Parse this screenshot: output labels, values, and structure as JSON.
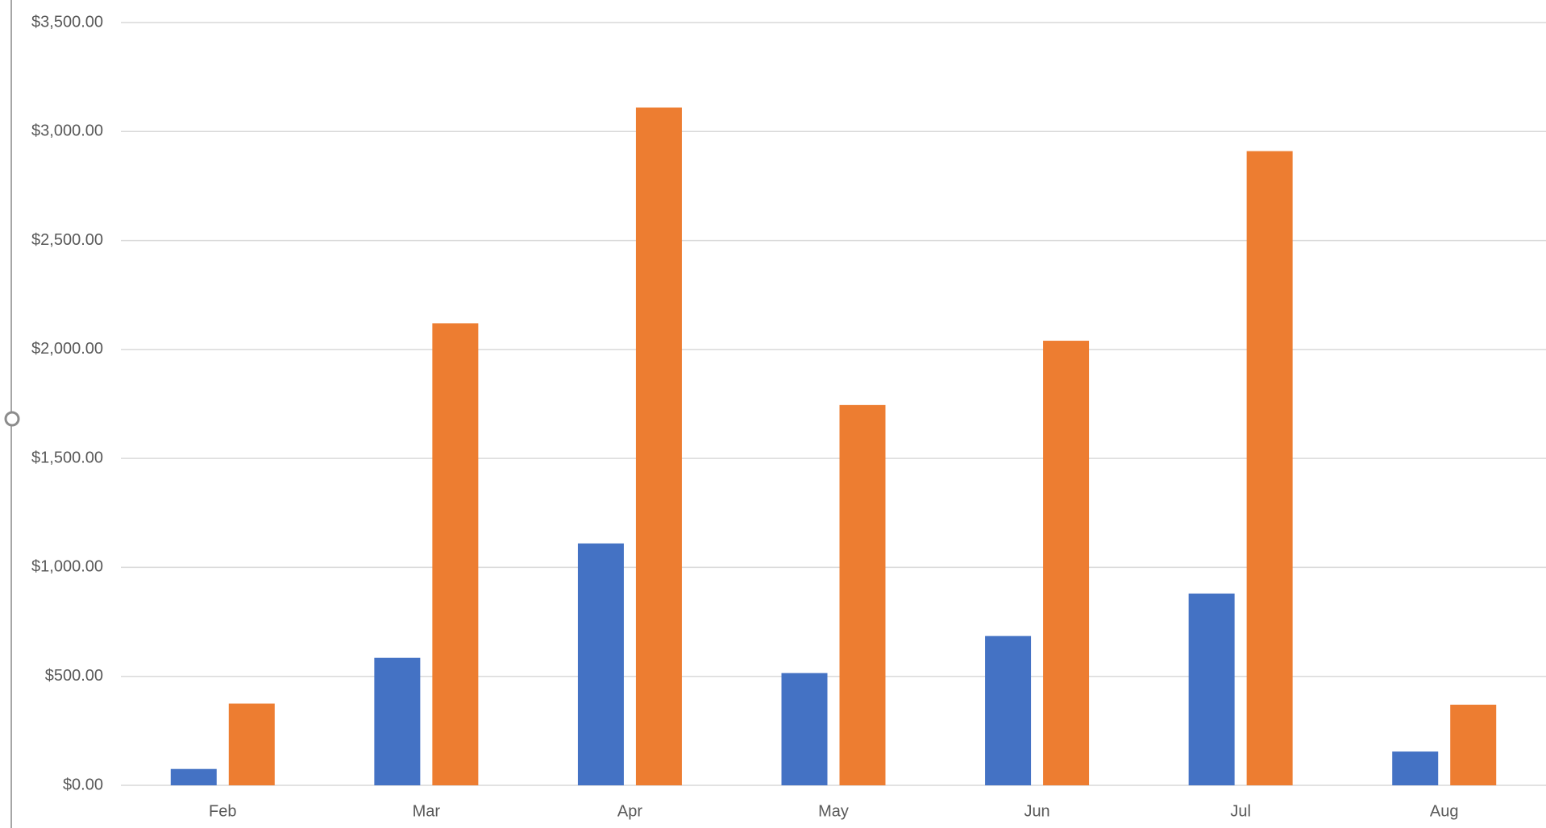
{
  "chart_data": {
    "type": "bar",
    "categories": [
      "Feb",
      "Mar",
      "Apr",
      "May",
      "Jun",
      "Jul",
      "Aug"
    ],
    "series": [
      {
        "color": "#4472c4",
        "values": [
          75,
          585,
          1110,
          515,
          685,
          880,
          155
        ]
      },
      {
        "color": "#ed7d31",
        "values": [
          375,
          2120,
          3110,
          1745,
          2040,
          2910,
          370
        ]
      }
    ],
    "ylim": [
      0,
      3500
    ],
    "yticks": [
      {
        "value": 0,
        "label": "$0.00"
      },
      {
        "value": 500,
        "label": "$500.00"
      },
      {
        "value": 1000,
        "label": "$1,000.00"
      },
      {
        "value": 1500,
        "label": "$1,500.00"
      },
      {
        "value": 2000,
        "label": "$2,000.00"
      },
      {
        "value": 2500,
        "label": "$2,500.00"
      },
      {
        "value": 3000,
        "label": "$3,000.00"
      },
      {
        "value": 3500,
        "label": "$3,500.00"
      }
    ],
    "grid": true
  }
}
